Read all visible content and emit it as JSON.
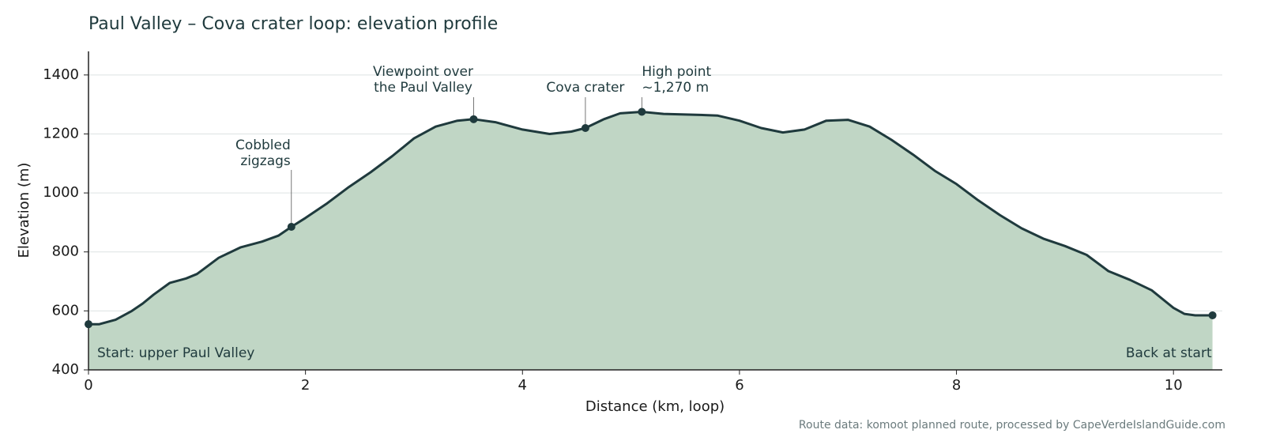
{
  "chart_data": {
    "type": "area",
    "title": "Paul Valley – Cova crater loop: elevation profile",
    "x_label": "Distance (km, loop)",
    "y_label": "Elevation (m)",
    "source": "Route data: komoot planned route, processed by CapeVerdeIslandGuide.com",
    "x": [
      0,
      0.1,
      0.25,
      0.4,
      0.5,
      0.6,
      0.75,
      0.9,
      1.0,
      1.2,
      1.4,
      1.6,
      1.75,
      1.87,
      2.0,
      2.2,
      2.4,
      2.6,
      2.8,
      3.0,
      3.2,
      3.4,
      3.55,
      3.75,
      4.0,
      4.25,
      4.45,
      4.58,
      4.75,
      4.9,
      5.1,
      5.3,
      5.6,
      5.8,
      6.0,
      6.2,
      6.4,
      6.6,
      6.8,
      7.0,
      7.2,
      7.4,
      7.6,
      7.8,
      8.0,
      8.2,
      8.4,
      8.6,
      8.8,
      9.0,
      9.2,
      9.4,
      9.6,
      9.8,
      10.0,
      10.1,
      10.2,
      10.36
    ],
    "values": [
      555,
      555,
      570,
      600,
      625,
      655,
      695,
      710,
      725,
      780,
      815,
      835,
      855,
      885,
      915,
      965,
      1020,
      1070,
      1125,
      1185,
      1225,
      1245,
      1250,
      1240,
      1215,
      1200,
      1208,
      1220,
      1250,
      1270,
      1275,
      1268,
      1265,
      1262,
      1245,
      1220,
      1205,
      1215,
      1245,
      1248,
      1225,
      1180,
      1130,
      1075,
      1030,
      975,
      925,
      880,
      845,
      820,
      790,
      735,
      705,
      670,
      610,
      590,
      585,
      585
    ],
    "color": "#1f3a3d",
    "fill_color": "#c0d6c5",
    "xlim": [
      0,
      10.45
    ],
    "ylim": [
      400,
      1480
    ],
    "xticks": [
      0,
      2,
      4,
      6,
      8,
      10
    ],
    "yticks": [
      400,
      600,
      800,
      1000,
      1200,
      1400
    ],
    "grid": true,
    "start_label": "Start: upper Paul Valley",
    "end_label": "Back at start",
    "start_point": {
      "x": 0,
      "y": 555
    },
    "end_point": {
      "x": 10.36,
      "y": 585
    },
    "annotations": [
      {
        "x": 1.87,
        "y": 885,
        "text": [
          "Cobbled",
          "zigzags"
        ]
      },
      {
        "x": 3.55,
        "y": 1250,
        "text": [
          "Viewpoint over",
          "the Paul Valley"
        ]
      },
      {
        "x": 4.58,
        "y": 1220,
        "text": [
          "Cova crater"
        ]
      },
      {
        "x": 5.1,
        "y": 1275,
        "text": [
          "High point",
          "~1,270 m"
        ]
      }
    ]
  }
}
